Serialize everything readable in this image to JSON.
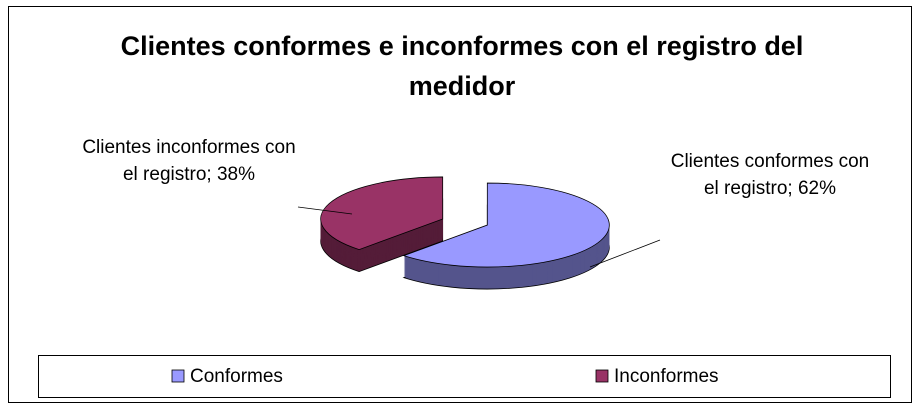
{
  "chart_data": {
    "type": "pie",
    "title": "Clientes conformes e inconformes con el registro del medidor",
    "categories": [
      "Conformes",
      "Inconformes"
    ],
    "values": [
      62,
      38
    ],
    "value_labels": [
      "Clientes conformes con el registro; 62%",
      "Clientes inconformes con el registro; 38%"
    ],
    "colors": [
      "#9999ff",
      "#993366"
    ],
    "legend": "bottom"
  }
}
